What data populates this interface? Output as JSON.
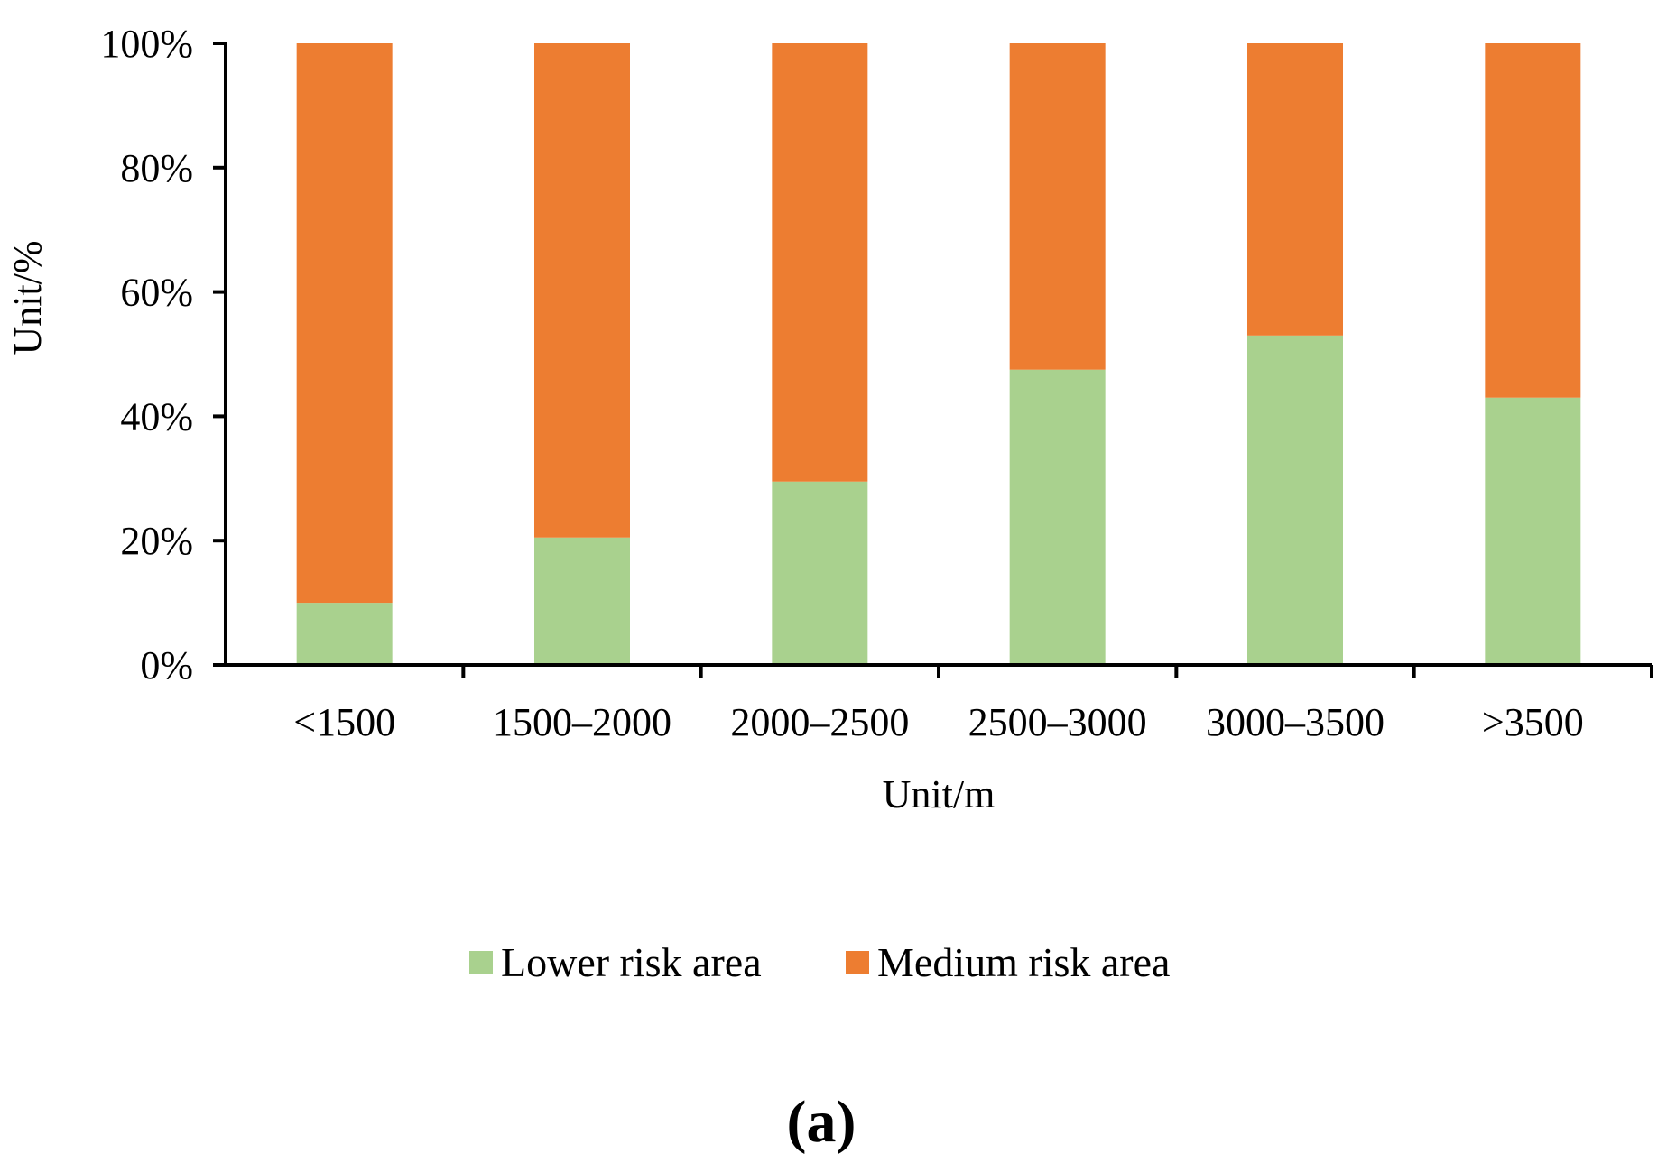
{
  "chart_data": {
    "type": "bar",
    "stacked": true,
    "normalized": true,
    "categories": [
      "<1500",
      "1500–2000",
      "2000–2500",
      "2500–3000",
      "3000–3500",
      ">3500"
    ],
    "series": [
      {
        "name": "Lower risk area",
        "color": "#a9d18e",
        "values": [
          10,
          20.5,
          29.5,
          47.5,
          53,
          43
        ]
      },
      {
        "name": "Medium risk area",
        "color": "#ed7d31",
        "values": [
          90,
          79.5,
          70.5,
          52.5,
          47,
          57
        ]
      }
    ],
    "xlabel": "Unit/m",
    "ylabel": "Unit/%",
    "ylim": [
      0,
      100
    ],
    "yticks": [
      {
        "value": 0,
        "label": "0%"
      },
      {
        "value": 20,
        "label": "20%"
      },
      {
        "value": 40,
        "label": "40%"
      },
      {
        "value": 60,
        "label": "60%"
      },
      {
        "value": 80,
        "label": "80%"
      },
      {
        "value": 100,
        "label": "100%"
      }
    ],
    "grid": false,
    "legend_position": "bottom-center"
  },
  "panel_label": "(a)"
}
